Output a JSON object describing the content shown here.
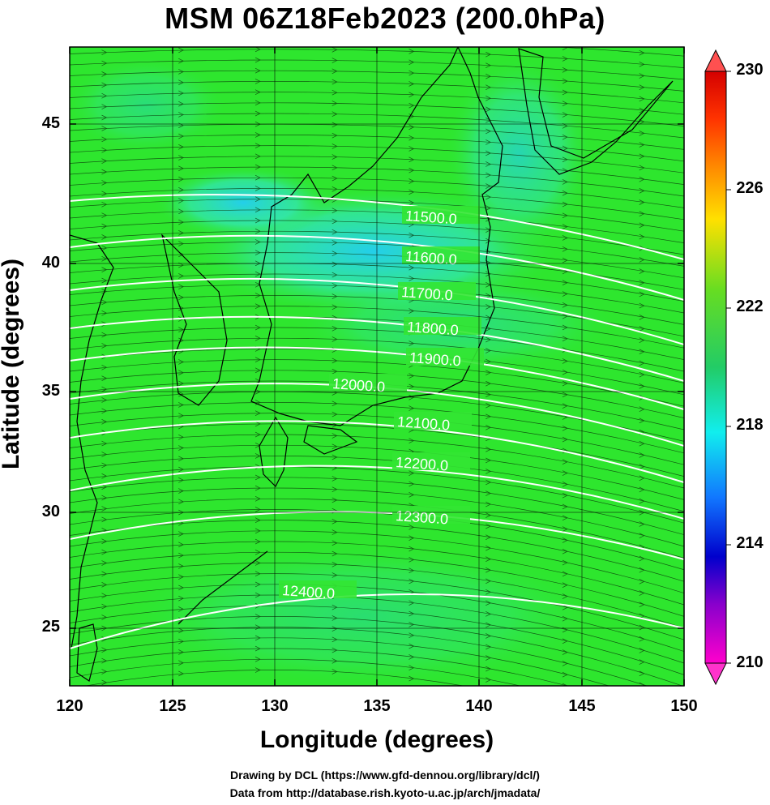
{
  "title": "MSM 06Z18Feb2023 (200.0hPa)",
  "x_axis": {
    "label": "Longitude (degrees)",
    "ticks": [
      "120",
      "125",
      "130",
      "135",
      "140",
      "145",
      "150"
    ]
  },
  "y_axis": {
    "label": "Latitude  (degrees)",
    "ticks": [
      "45",
      "40",
      "35",
      "30",
      "25"
    ]
  },
  "colorbar": {
    "ticks": [
      "230",
      "226",
      "222",
      "218",
      "214",
      "210"
    ],
    "min": 210,
    "max": 230
  },
  "contours": [
    "11500.0",
    "11600.0",
    "11700.0",
    "11800.0",
    "11900.0",
    "12000.0",
    "12100.0",
    "12200.0",
    "12300.0",
    "12400.0"
  ],
  "credits": {
    "line1": "Drawing by DCL (https://www.gfd-dennou.org/library/dcl/)",
    "line2": "Data from http://database.rish.kyoto-u.ac.jp/arch/jmadata/"
  },
  "colors": {
    "field_green": "#33e633",
    "field_cyan": "#33e6c8",
    "contour": "#ffffff",
    "coast": "#000000"
  }
}
